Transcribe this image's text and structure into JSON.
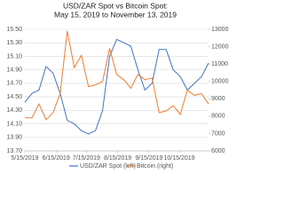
{
  "chart_data": {
    "type": "line",
    "title": "USD/ZAR Spot vs Bitcoin Spot:",
    "subtitle": "May 15, 2019 to November 13, 2019",
    "x": [
      "2019-05-15",
      "2019-05-22",
      "2019-05-29",
      "2019-06-05",
      "2019-06-12",
      "2019-06-19",
      "2019-06-26",
      "2019-07-03",
      "2019-07-10",
      "2019-07-17",
      "2019-07-24",
      "2019-07-31",
      "2019-08-07",
      "2019-08-14",
      "2019-08-21",
      "2019-08-28",
      "2019-09-04",
      "2019-09-11",
      "2019-09-18",
      "2019-09-25",
      "2019-10-02",
      "2019-10-09",
      "2019-10-16",
      "2019-10-23",
      "2019-10-30",
      "2019-11-06",
      "2019-11-13"
    ],
    "xlim": [
      "2019-05-15",
      "2019-11-13"
    ],
    "xticks": [
      {
        "value": "2019-05-15",
        "label": "5/15/2019"
      },
      {
        "value": "2019-06-15",
        "label": "6/15/2019"
      },
      {
        "value": "2019-07-15",
        "label": "7/15/2019"
      },
      {
        "value": "2019-08-15",
        "label": "8/15/2019"
      },
      {
        "value": "2019-09-15",
        "label": "9/15/2019"
      },
      {
        "value": "2019-10-15",
        "label": "10/15/2019"
      }
    ],
    "ylim": [
      13.7,
      15.5
    ],
    "yticks": [
      {
        "value": 13.7,
        "label": "13.70"
      },
      {
        "value": 13.9,
        "label": "13.90"
      },
      {
        "value": 14.1,
        "label": "14.10"
      },
      {
        "value": 14.3,
        "label": "14.30"
      },
      {
        "value": 14.5,
        "label": "14.50"
      },
      {
        "value": 14.7,
        "label": "14.70"
      },
      {
        "value": 14.9,
        "label": "14.90"
      },
      {
        "value": 15.1,
        "label": "15.10"
      },
      {
        "value": 15.3,
        "label": "15.30"
      },
      {
        "value": 15.5,
        "label": "15.50"
      }
    ],
    "y2lim": [
      6000,
      13000
    ],
    "y2ticks": [
      6000,
      7000,
      8000,
      9000,
      10000,
      11000,
      12000,
      13000
    ],
    "grid": true,
    "legend": "bottom",
    "series": [
      {
        "name": "USD/ZAR Spot (left)",
        "color": "#4472c4",
        "values": [
          14.42,
          14.55,
          14.6,
          14.95,
          14.85,
          14.55,
          14.15,
          14.1,
          14.0,
          13.95,
          14.0,
          14.3,
          15.1,
          15.35,
          15.3,
          15.25,
          14.9,
          14.6,
          14.7,
          15.2,
          15.2,
          14.9,
          14.8,
          14.6,
          14.7,
          14.8,
          15.0
        ]
      },
      {
        "name": "Bitcoin (right)",
        "color": "#ed7d31",
        "axis": "y2",
        "values": [
          7900,
          7900,
          8700,
          7800,
          8200,
          9300,
          12900,
          10800,
          11500,
          9700,
          9800,
          10000,
          11900,
          10400,
          10100,
          9600,
          10400,
          10100,
          10200,
          8200,
          8300,
          8600,
          8100,
          9500,
          9200,
          9300,
          8700
        ]
      }
    ]
  }
}
